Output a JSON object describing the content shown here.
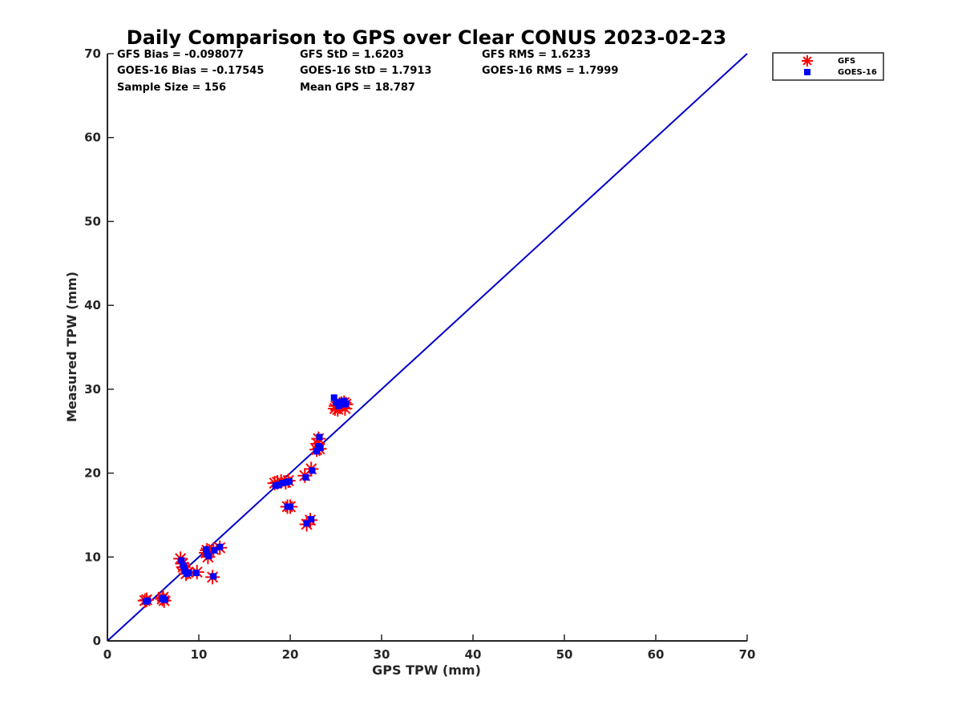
{
  "chart_data": {
    "type": "scatter",
    "title": "Daily Comparison to GPS over Clear CONUS 2023-02-23",
    "xlabel": "GPS TPW (mm)",
    "ylabel": "Measured TPW (mm)",
    "xlim": [
      0,
      70
    ],
    "ylim": [
      0,
      70
    ],
    "xticks": [
      "0",
      "10",
      "20",
      "30",
      "40",
      "50",
      "60",
      "70"
    ],
    "yticks": [
      "0",
      "10",
      "20",
      "30",
      "40",
      "50",
      "60",
      "70"
    ],
    "grid": false,
    "legend_position": "outside-top-right",
    "reference_line": {
      "name": "1:1 line",
      "x": [
        0,
        70
      ],
      "y": [
        0,
        70
      ],
      "color": "#0000cc"
    },
    "stats": [
      [
        "GFS Bias = -0.098077",
        "GFS StD = 1.6203",
        "GFS RMS = 1.6233"
      ],
      [
        "GOES-16 Bias = -0.17545",
        "GOES-16 StD = 1.7913",
        "GOES-16 RMS = 1.7999"
      ],
      [
        "Sample Size = 156",
        "Mean GPS = 18.787"
      ]
    ],
    "series": [
      {
        "name": "GFS",
        "marker": "asterisk",
        "color": "#ff0000",
        "x": [
          4.1,
          4.3,
          6.0,
          6.2,
          6.1,
          8.0,
          8.2,
          8.3,
          8.5,
          8.6,
          8.8,
          9.8,
          10.8,
          11.0,
          10.9,
          11.6,
          11.5,
          12.3,
          18.3,
          18.6,
          19.0,
          19.5,
          19.8,
          19.7,
          20.0,
          21.6,
          21.8,
          22.3,
          22.2,
          22.9,
          23.0,
          23.1,
          23.2,
          24.9,
          25.0,
          25.2,
          25.6,
          26.0,
          25.9,
          26.1
        ],
        "y": [
          4.8,
          4.9,
          5.0,
          4.8,
          5.2,
          9.8,
          9.2,
          8.8,
          8.5,
          8.0,
          8.2,
          8.2,
          10.5,
          10.0,
          10.8,
          10.9,
          7.6,
          11.1,
          18.8,
          18.9,
          19.0,
          18.9,
          19.1,
          16.0,
          16.0,
          19.7,
          13.9,
          20.5,
          14.4,
          22.8,
          23.5,
          24.1,
          22.9,
          27.7,
          28.0,
          27.6,
          28.3,
          27.7,
          28.4,
          28.2
        ]
      },
      {
        "name": "GOES-16",
        "marker": "square",
        "color": "#0000ff",
        "x": [
          4.2,
          4.4,
          6.1,
          6.3,
          6.0,
          8.1,
          8.3,
          8.4,
          8.5,
          8.7,
          8.9,
          9.7,
          10.9,
          11.1,
          10.8,
          11.7,
          11.6,
          12.3,
          18.4,
          18.7,
          19.1,
          19.6,
          19.9,
          19.7,
          20.0,
          21.7,
          21.8,
          22.4,
          22.3,
          22.9,
          23.1,
          23.2,
          23.3,
          24.8,
          25.0,
          25.3,
          25.6,
          26.0,
          25.9,
          26.1
        ],
        "y": [
          4.7,
          4.8,
          5.1,
          4.9,
          5.0,
          9.6,
          9.0,
          8.7,
          8.3,
          8.0,
          8.1,
          8.1,
          10.4,
          10.1,
          10.9,
          10.8,
          7.7,
          11.2,
          18.5,
          18.6,
          18.8,
          18.9,
          19.0,
          16.0,
          16.0,
          19.5,
          14.0,
          20.3,
          14.5,
          22.6,
          23.2,
          24.3,
          23.0,
          29.0,
          28.4,
          28.0,
          28.5,
          28.2,
          28.6,
          28.3
        ]
      }
    ]
  }
}
